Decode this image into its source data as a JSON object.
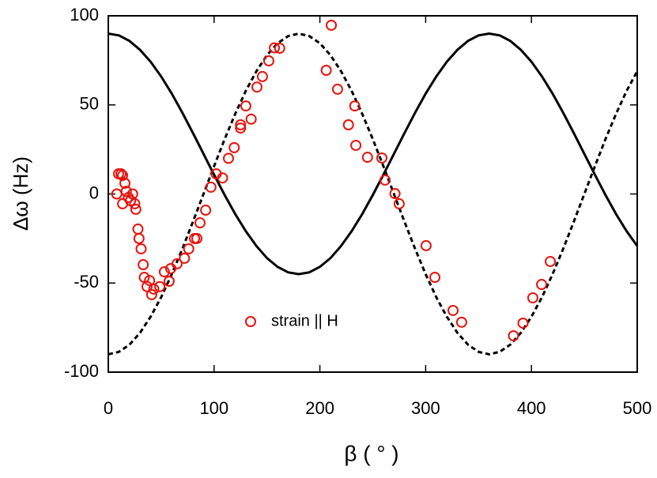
{
  "chart_data": {
    "type": "scatter",
    "xlabel": "β  ( ° )",
    "ylabel": "Δω  (Hz)",
    "xlim": [
      0,
      500
    ],
    "ylim": [
      -100,
      100
    ],
    "xticks": [
      0,
      100,
      200,
      300,
      400,
      500
    ],
    "yticks": [
      -100,
      -50,
      0,
      50,
      100
    ],
    "legend": "bottom-left",
    "x": [
      0,
      10,
      20,
      30,
      40,
      50,
      60,
      70,
      80,
      90,
      100,
      110,
      120,
      130,
      140,
      150,
      160,
      170,
      180,
      190,
      200,
      210,
      220,
      230,
      240,
      250,
      260,
      270,
      280,
      290,
      300,
      310,
      320,
      330,
      340,
      350,
      360,
      370,
      380,
      390,
      400,
      410,
      420,
      430,
      440,
      450,
      460,
      470,
      480,
      490,
      500
    ],
    "series": [
      {
        "type": "line",
        "style": "solid",
        "color": "#000000",
        "values": [
          90,
          89.0,
          85.9,
          80.9,
          74.2,
          65.9,
          56.3,
          45.6,
          34.2,
          22.5,
          10.8,
          -0.6,
          -11.3,
          -20.9,
          -29.2,
          -36.0,
          -40.9,
          -44.0,
          -45,
          -44.0,
          -40.9,
          -36.0,
          -29.2,
          -20.9,
          -11.3,
          -0.6,
          10.8,
          22.5,
          34.2,
          45.6,
          56.3,
          65.9,
          74.2,
          80.9,
          85.9,
          89.0,
          90,
          89.0,
          85.9,
          80.9,
          74.2,
          65.9,
          56.3,
          45.6,
          34.2,
          22.5,
          10.8,
          -0.6,
          -11.3,
          -20.9,
          -29.2
        ]
      },
      {
        "type": "line",
        "style": "dashed",
        "color": "#000000",
        "values": [
          -90,
          -88.6,
          -84.6,
          -77.9,
          -68.9,
          -57.9,
          -45,
          -30.8,
          -15.6,
          0,
          15.6,
          30.8,
          45,
          57.9,
          68.9,
          77.9,
          84.6,
          88.6,
          90,
          88.6,
          84.6,
          77.9,
          68.9,
          57.9,
          45,
          30.8,
          15.6,
          0,
          -15.6,
          -30.8,
          -45,
          -57.9,
          -68.9,
          -77.9,
          -84.6,
          -88.6,
          -90,
          -88.6,
          -84.6,
          -77.9,
          -68.9,
          -57.9,
          -45,
          -30.8,
          -15.6,
          0,
          15.6,
          30.8,
          45,
          57.9,
          68.9
        ]
      },
      {
        "type": "scatter",
        "name": "strain || H",
        "color": "#e8120c",
        "x": [
          9.7,
          12,
          13.5,
          8,
          13.5,
          15.7,
          17,
          19,
          21,
          23,
          25,
          26,
          28,
          29,
          31,
          33,
          34,
          36.6,
          39,
          41,
          43,
          48.6,
          53,
          57.5,
          59,
          65,
          72,
          76,
          81.5,
          83.7,
          86.7,
          92,
          97,
          102,
          108,
          113.6,
          119,
          125,
          125,
          130,
          135,
          140.5,
          145.7,
          151.7,
          157,
          162,
          210.8,
          206,
          216.7,
          227,
          233,
          234,
          245,
          258.6,
          261.6,
          271,
          275,
          300.4,
          308.7,
          325.9,
          334,
          383,
          392,
          401.3,
          409.6,
          417.8
        ],
        "values": [
          11.3,
          11.3,
          10.4,
          0,
          -5.5,
          6,
          1.5,
          -2,
          -3.8,
          0,
          -5.5,
          -8.6,
          -19.7,
          -25,
          -30.8,
          -39.7,
          -46.8,
          -52,
          -48.6,
          -56.5,
          -53.4,
          -52,
          -43.7,
          -49,
          -41.9,
          -39.2,
          -36.1,
          -30.8,
          -25,
          -25,
          -16.2,
          -9.1,
          3.8,
          11.3,
          9,
          20,
          26,
          37,
          38.8,
          49.4,
          42,
          60,
          65.9,
          74.7,
          82,
          81.8,
          94.7,
          69.4,
          58.8,
          38.8,
          49.4,
          27.3,
          20.6,
          20.2,
          7.8,
          0.2,
          -5.5,
          -29,
          -46.8,
          -65.4,
          -72,
          -79.6,
          -72.5,
          -58.3,
          -50.8,
          -37.9
        ]
      }
    ]
  }
}
